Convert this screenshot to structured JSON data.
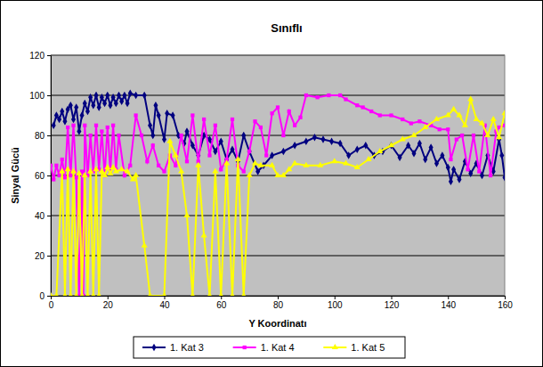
{
  "chart_data": {
    "type": "line",
    "title": "Sınıflı",
    "x_label": "Y Koordinatı",
    "y_label": "Sinyal Gücü",
    "xlim": [
      0,
      160
    ],
    "xticks": [
      0,
      20,
      40,
      60,
      80,
      100,
      120,
      140,
      160
    ],
    "ylim": [
      0,
      120
    ],
    "yticks": [
      0,
      20,
      40,
      60,
      80,
      100,
      120
    ],
    "grid": true,
    "legend": "bottom",
    "series": [
      {
        "name": "1. Kat 3",
        "color": "#000080",
        "marker": "diamond",
        "line_style": "solid",
        "x": [
          1,
          2,
          3,
          4,
          5,
          6,
          7,
          8,
          9,
          10,
          11,
          12,
          13,
          14,
          15,
          16,
          17,
          18,
          19,
          20,
          21,
          22,
          23,
          24,
          25,
          26,
          27,
          28,
          30,
          33,
          35,
          36,
          37,
          38,
          40,
          41,
          43,
          45,
          47,
          48,
          50,
          52,
          54,
          56,
          58,
          60,
          62,
          64,
          66,
          68,
          70,
          73,
          75,
          78,
          82,
          86,
          90,
          93,
          96,
          99,
          102,
          105,
          108,
          111,
          114,
          117,
          120,
          123,
          126,
          128,
          130,
          132,
          134,
          136,
          138,
          140,
          141,
          142,
          144,
          146,
          148,
          150,
          152,
          154,
          156,
          158,
          159,
          160
        ],
        "values": [
          85,
          90,
          88,
          92,
          87,
          93,
          95,
          88,
          94,
          82,
          90,
          96,
          92,
          99,
          95,
          100,
          94,
          99,
          96,
          100,
          95,
          99,
          96,
          100,
          97,
          100,
          96,
          101,
          100,
          100,
          85,
          80,
          95,
          90,
          78,
          91,
          90,
          80,
          76,
          82,
          75,
          70,
          80,
          78,
          72,
          77,
          68,
          73,
          67,
          80,
          72,
          62,
          65,
          70,
          72,
          75,
          77,
          79,
          78,
          77,
          76,
          70,
          73,
          75,
          70,
          72,
          75,
          69,
          75,
          71,
          76,
          68,
          74,
          66,
          70,
          64,
          57,
          63,
          58,
          67,
          61,
          66,
          60,
          70,
          62,
          78,
          70,
          59
        ]
      },
      {
        "name": "1. Kat 4",
        "color": "#ff00ff",
        "marker": "square",
        "line_style": "solid",
        "x": [
          0,
          1,
          2,
          3,
          4,
          5,
          6,
          7,
          8,
          9,
          10,
          11,
          11.5,
          12,
          13,
          14,
          15,
          16,
          17,
          18,
          19,
          20,
          21,
          22,
          23,
          24,
          26,
          28,
          30,
          32,
          34,
          36,
          38,
          40,
          42,
          44,
          46,
          48,
          50,
          52,
          54,
          56,
          58,
          60,
          62,
          64,
          66,
          68,
          70,
          72,
          74,
          76,
          78,
          80,
          82,
          84,
          86,
          88,
          90,
          94,
          98,
          102,
          104,
          108,
          110,
          113,
          116,
          120,
          124,
          127,
          130,
          134,
          137,
          140,
          141,
          143,
          145,
          147,
          149,
          151,
          153,
          155,
          157,
          158,
          160
        ],
        "values": [
          65,
          58,
          65,
          60,
          68,
          59,
          84,
          60,
          85,
          59,
          0,
          62,
          0,
          85,
          60,
          80,
          62,
          85,
          63,
          82,
          60,
          84,
          62,
          85,
          63,
          80,
          60,
          65,
          90,
          80,
          67,
          75,
          65,
          62,
          70,
          65,
          80,
          67,
          90,
          67,
          88,
          70,
          85,
          63,
          68,
          88,
          65,
          62,
          72,
          87,
          84,
          70,
          91,
          94,
          80,
          92,
          85,
          89,
          100,
          99,
          100,
          100,
          98,
          95,
          94,
          92,
          90,
          90,
          88,
          86,
          87,
          85,
          83,
          83,
          68,
          78,
          80,
          63,
          80,
          62,
          85,
          60,
          82,
          84,
          85
        ]
      },
      {
        "name": "1. Kat 5",
        "color": "#ffff00",
        "marker": "triangle",
        "line_style": "solid",
        "x": [
          0,
          2,
          4,
          5,
          6,
          7,
          8,
          9,
          10,
          11,
          12,
          13,
          14,
          15,
          16,
          17,
          18,
          19,
          20,
          21,
          22,
          23,
          25,
          27,
          29,
          30,
          33,
          35,
          40,
          42,
          44,
          46,
          48,
          50,
          52,
          54,
          56,
          58,
          60,
          62,
          64,
          66,
          68,
          70,
          72,
          74,
          78,
          80,
          82,
          84,
          86,
          90,
          95,
          100,
          104,
          108,
          112,
          116,
          120,
          124,
          128,
          132,
          136,
          140,
          142,
          144,
          146,
          148,
          150,
          152,
          154,
          156,
          158,
          160
        ],
        "values": [
          0,
          0,
          62,
          0,
          63,
          0,
          62,
          0,
          61,
          0,
          60,
          0,
          62,
          0,
          63,
          0,
          62,
          60,
          64,
          61,
          64,
          62,
          63,
          62,
          58,
          60,
          25,
          0,
          0,
          77,
          70,
          62,
          40,
          0,
          65,
          30,
          0,
          62,
          0,
          66,
          0,
          68,
          0,
          60,
          66,
          65,
          65,
          60,
          60,
          63,
          66,
          65,
          65,
          67,
          66,
          64,
          68,
          72,
          75,
          78,
          80,
          84,
          88,
          90,
          93,
          90,
          85,
          98,
          88,
          86,
          80,
          88,
          79,
          91
        ]
      }
    ]
  }
}
